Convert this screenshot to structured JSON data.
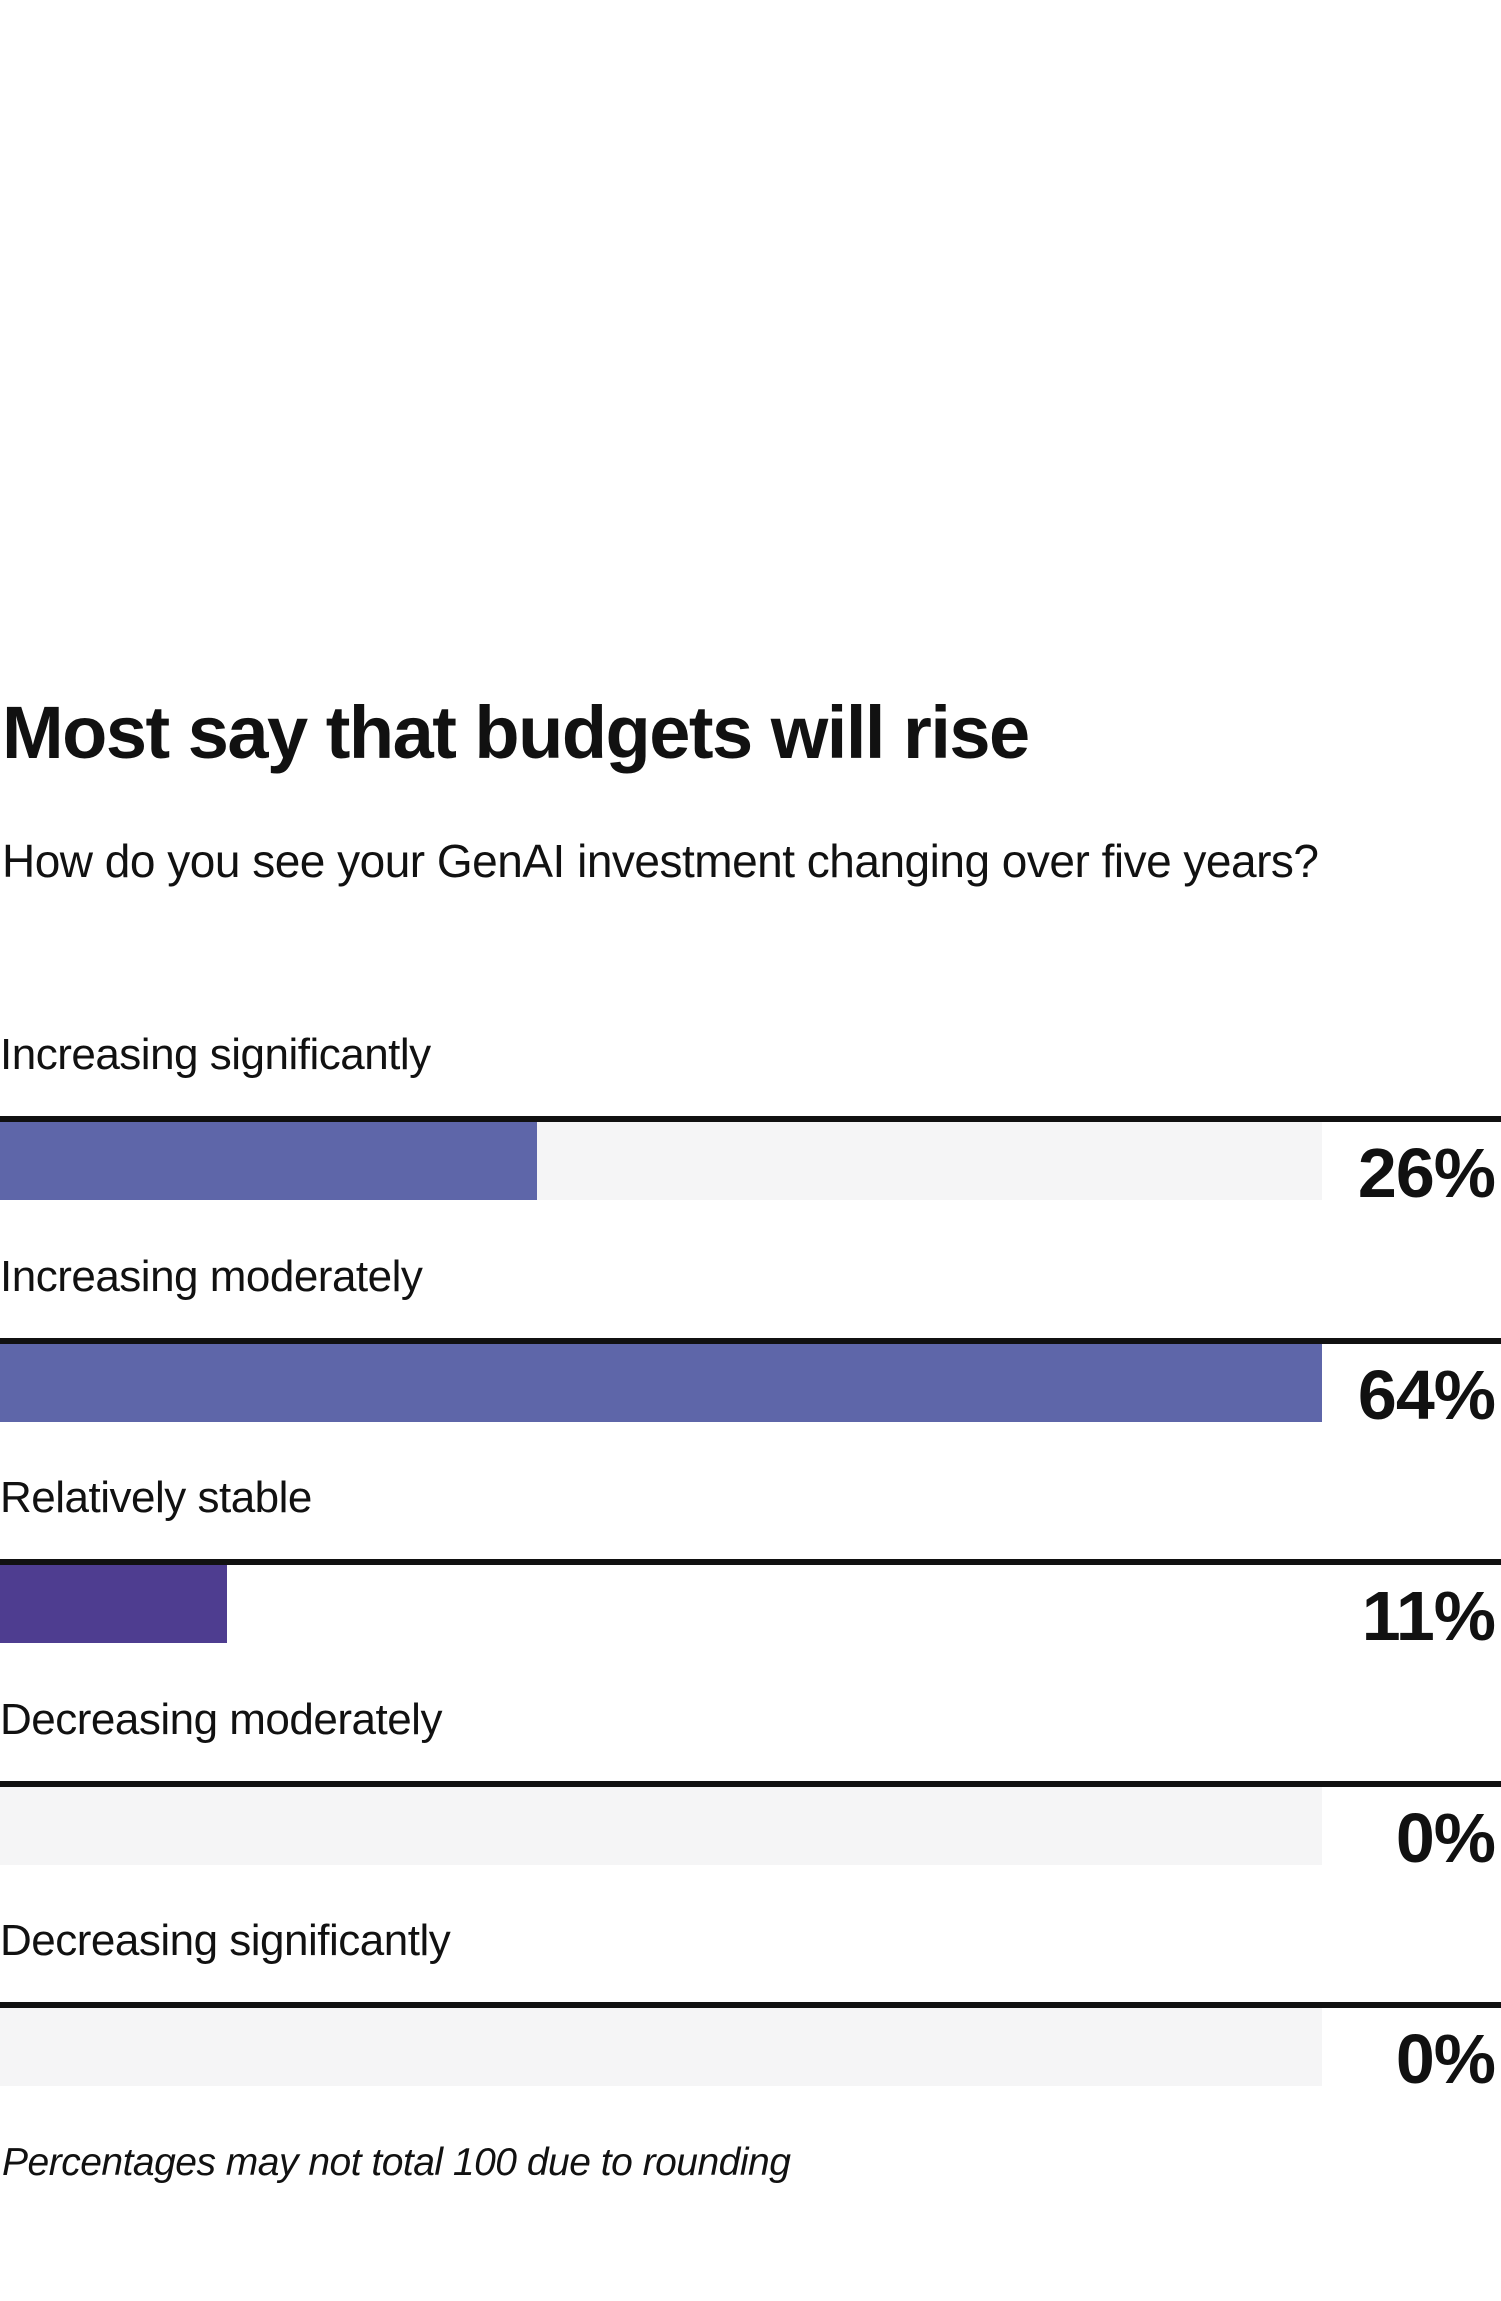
{
  "chart": {
    "title": "Most say that budgets will rise",
    "subtitle": "How do you see your GenAI investment changing over five years?",
    "footnote": "Percentages may not total 100 due to rounding"
  },
  "chart_data": {
    "type": "bar",
    "orientation": "horizontal",
    "title": "Most say that budgets will rise",
    "subtitle": "How do you see your GenAI investment changing over five years?",
    "categories": [
      "Increasing significantly",
      "Increasing moderately",
      "Relatively stable",
      "Decreasing moderately",
      "Decreasing significantly"
    ],
    "values": [
      26,
      64,
      11,
      0,
      0
    ],
    "value_labels": [
      "26%",
      "64%",
      "11%",
      "0%",
      "0%"
    ],
    "unit": "%",
    "axis_max": 64,
    "xlabel": "",
    "ylabel": "",
    "grid": false,
    "legend": false,
    "value_label_position": "right-of-track",
    "bar_colors": [
      "#5e66a9",
      "#5e66a9",
      "#4e3d90",
      "#5e66a9",
      "#5e66a9"
    ],
    "track_colors": [
      "#f5f5f6",
      "#f5f5f6",
      "#ffffff",
      "#f5f5f6",
      "#f5f5f6"
    ],
    "rule_color": "#111111",
    "annotations": [
      "Percentages may not total 100 due to rounding"
    ]
  }
}
